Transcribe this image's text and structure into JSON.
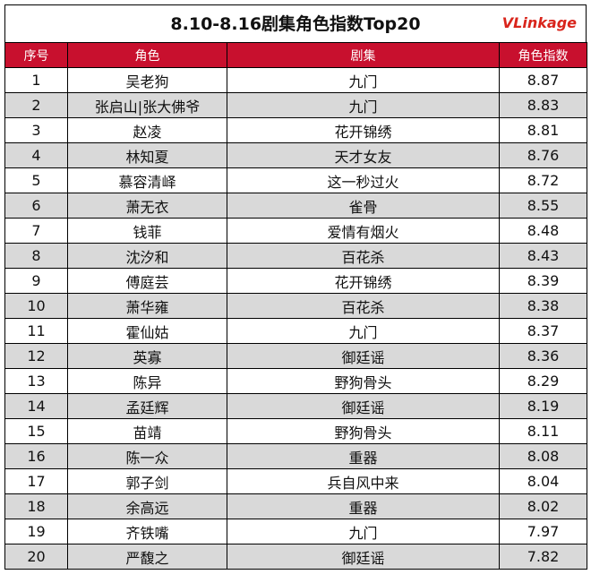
{
  "header": {
    "title": "8.10-8.16剧集角色指数Top20",
    "logo": "VLinkage"
  },
  "table": {
    "columns": [
      "序号",
      "角色",
      "剧集",
      "角色指数"
    ],
    "rows": [
      [
        1,
        "吴老狗",
        "九门",
        8.87
      ],
      [
        2,
        "张启山|张大佛爷",
        "九门",
        8.83
      ],
      [
        3,
        "赵凌",
        "花开锦绣",
        8.81
      ],
      [
        4,
        "林知夏",
        "天才女友",
        8.76
      ],
      [
        5,
        "慕容清峄",
        "这一秒过火",
        8.72
      ],
      [
        6,
        "萧无衣",
        "雀骨",
        8.55
      ],
      [
        7,
        "钱菲",
        "爱情有烟火",
        8.48
      ],
      [
        8,
        "沈汐和",
        "百花杀",
        8.43
      ],
      [
        9,
        "傅庭芸",
        "花开锦绣",
        8.39
      ],
      [
        10,
        "萧华雍",
        "百花杀",
        8.38
      ],
      [
        11,
        "霍仙姑",
        "九门",
        8.37
      ],
      [
        12,
        "英寡",
        "御廷谣",
        8.36
      ],
      [
        13,
        "陈异",
        "野狗骨头",
        8.29
      ],
      [
        14,
        "孟廷辉",
        "御廷谣",
        8.19
      ],
      [
        15,
        "苗靖",
        "野狗骨头",
        8.11
      ],
      [
        16,
        "陈一众",
        "重器",
        8.08
      ],
      [
        17,
        "郭子剑",
        "兵自风中来",
        8.04
      ],
      [
        18,
        "余高远",
        "重器",
        8.02
      ],
      [
        19,
        "齐铁嘴",
        "九门",
        7.97
      ],
      [
        20,
        "严馥之",
        "御廷谣",
        7.82
      ]
    ]
  }
}
